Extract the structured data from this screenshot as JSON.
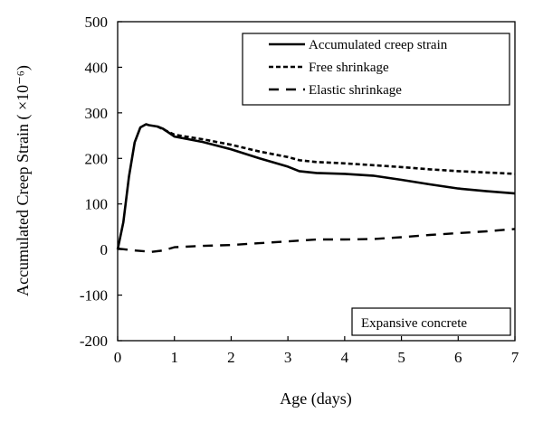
{
  "chart_data": {
    "type": "line",
    "xlabel": "Age (days)",
    "ylabel": "Accumulated Creep Strain ( ×10⁻⁶)",
    "xlim": [
      0,
      7
    ],
    "ylim": [
      -200,
      500
    ],
    "xticks": [
      "0",
      "1",
      "2",
      "3",
      "4",
      "5",
      "6",
      "7"
    ],
    "yticks": [
      "-200",
      "-100",
      "0",
      "100",
      "200",
      "300",
      "400",
      "500"
    ],
    "grid": false,
    "legend_position": "top-right",
    "annotation": "Expansive  concrete",
    "series": [
      {
        "name": "Accumulated creep strain",
        "style": "solid",
        "x": [
          0,
          0.1,
          0.2,
          0.3,
          0.4,
          0.5,
          0.55,
          0.6,
          0.7,
          0.8,
          1.0,
          1.5,
          2.0,
          2.5,
          3.0,
          3.2,
          3.5,
          4.0,
          4.5,
          5.0,
          5.5,
          6.0,
          6.5,
          7.0
        ],
        "y": [
          0,
          60,
          160,
          235,
          268,
          275,
          273,
          272,
          270,
          265,
          248,
          236,
          220,
          200,
          182,
          172,
          168,
          166,
          162,
          153,
          143,
          134,
          128,
          123
        ]
      },
      {
        "name": "Free shrinkage",
        "style": "dotted",
        "x": [
          0.7,
          1.0,
          1.5,
          2.0,
          2.5,
          3.0,
          3.2,
          3.5,
          4.0,
          4.5,
          5.0,
          5.5,
          6.0,
          6.5,
          7.0
        ],
        "y": [
          270,
          252,
          242,
          230,
          215,
          203,
          196,
          192,
          189,
          185,
          181,
          176,
          172,
          169,
          166
        ]
      },
      {
        "name": "Elastic shrinkage",
        "style": "dashed",
        "x": [
          0,
          0.3,
          0.6,
          0.8,
          1.0,
          1.5,
          2.0,
          2.5,
          3.0,
          3.5,
          4.0,
          4.5,
          5.0,
          5.5,
          6.0,
          6.5,
          7.0
        ],
        "y": [
          2,
          -2,
          -5,
          -2,
          5,
          8,
          10,
          14,
          18,
          22,
          22,
          23,
          27,
          32,
          36,
          40,
          45
        ]
      }
    ]
  }
}
